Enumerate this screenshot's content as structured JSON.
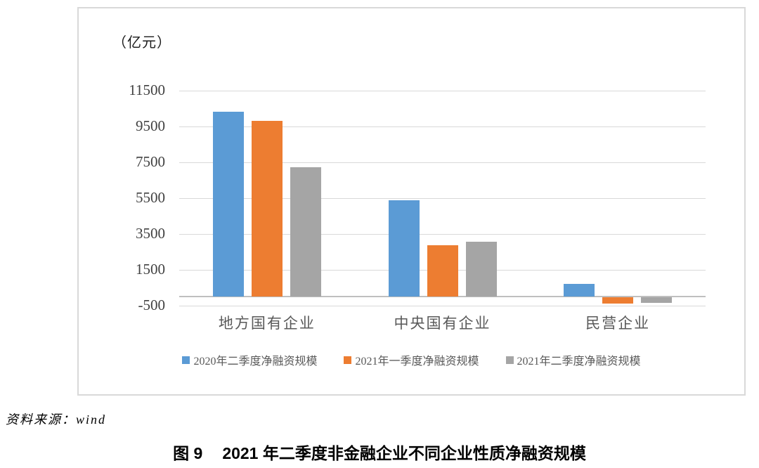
{
  "chart_data": {
    "type": "bar",
    "unit_label": "（亿元）",
    "categories": [
      "地方国有企业",
      "中央国有企业",
      "民营企业"
    ],
    "series": [
      {
        "name": "2020年二季度净融资规模",
        "color": "#5B9BD5",
        "values": [
          10300,
          5350,
          700
        ]
      },
      {
        "name": "2021年一季度净融资规模",
        "color": "#ED7D31",
        "values": [
          9800,
          2850,
          -370
        ]
      },
      {
        "name": "2021年二季度净融资规模",
        "color": "#A5A5A5",
        "values": [
          7200,
          3050,
          -330
        ]
      }
    ],
    "y_ticks": [
      11500,
      9500,
      7500,
      5500,
      3500,
      1500,
      -500
    ],
    "ylim": [
      -500,
      11500
    ],
    "grid": true,
    "legend_position": "bottom"
  },
  "colors": {
    "gridline": "#d9d9d9",
    "axis": "#bfbfbf",
    "border": "#d9d9d9"
  },
  "source_note": "资料来源：wind",
  "caption": {
    "figure_no": "图 9",
    "title": "2021 年二季度非金融企业不同企业性质净融资规模"
  }
}
